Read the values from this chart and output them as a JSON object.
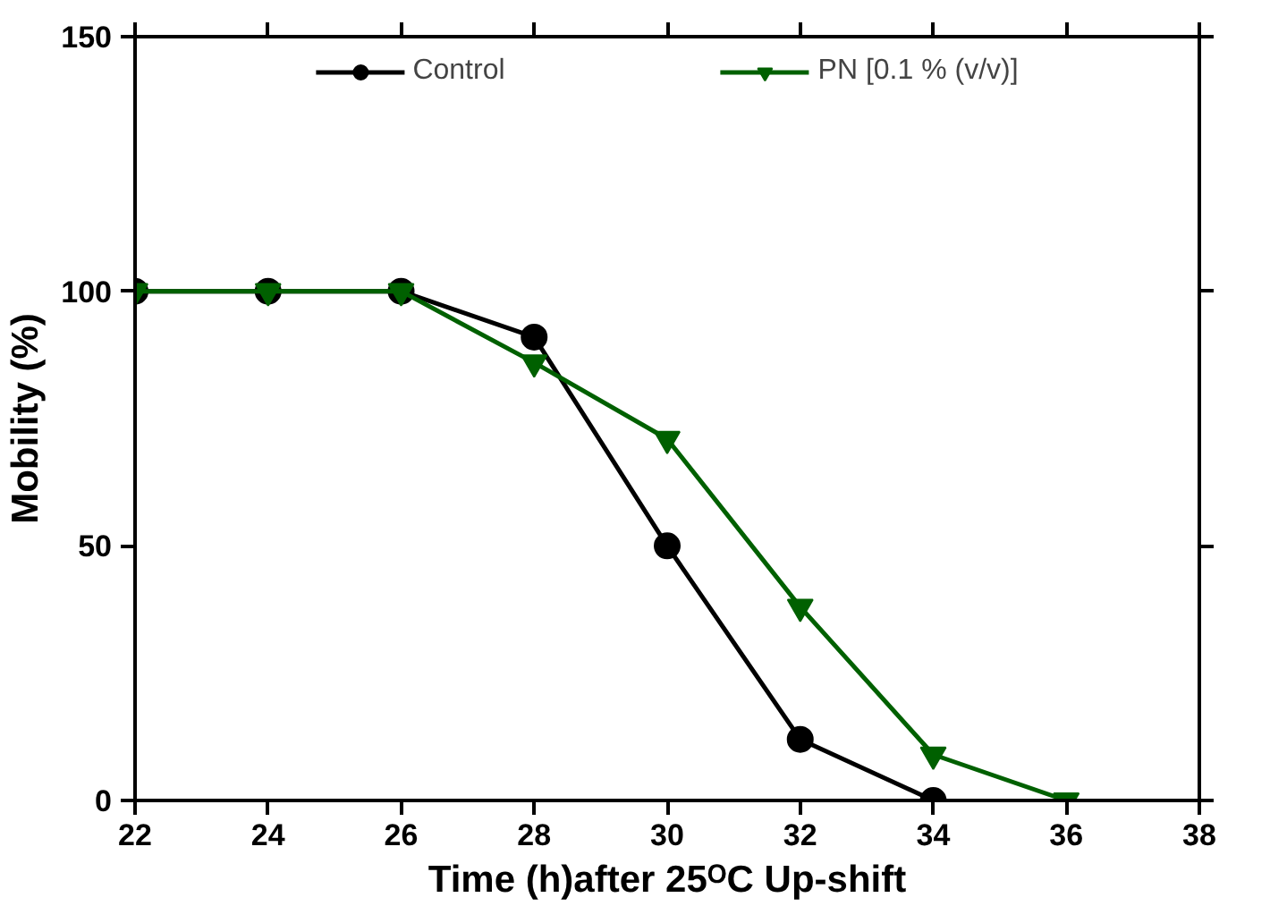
{
  "chart_data": {
    "type": "line",
    "xlabel": "Time (h)after 25ᴼC Up-shift",
    "ylabel": "Mobility (%)",
    "x": [
      22,
      24,
      26,
      28,
      30,
      32,
      34,
      36
    ],
    "series": [
      {
        "name": "Control",
        "color": "#000000",
        "marker": "circle",
        "values": [
          100,
          100,
          100,
          91,
          50,
          12,
          0,
          null
        ]
      },
      {
        "name": "PN [0.1 % (v/v)]",
        "color": "#006000",
        "marker": "triangle",
        "values": [
          100,
          100,
          100,
          86,
          71,
          38,
          9,
          0
        ]
      }
    ],
    "xlim": [
      22,
      38
    ],
    "xticks": [
      22,
      24,
      26,
      28,
      30,
      32,
      34,
      36,
      38
    ],
    "ylim": [
      0,
      150
    ],
    "yticks": [
      0,
      50,
      100,
      150
    ],
    "grid": false,
    "legend": "top",
    "line_style": "solid"
  }
}
